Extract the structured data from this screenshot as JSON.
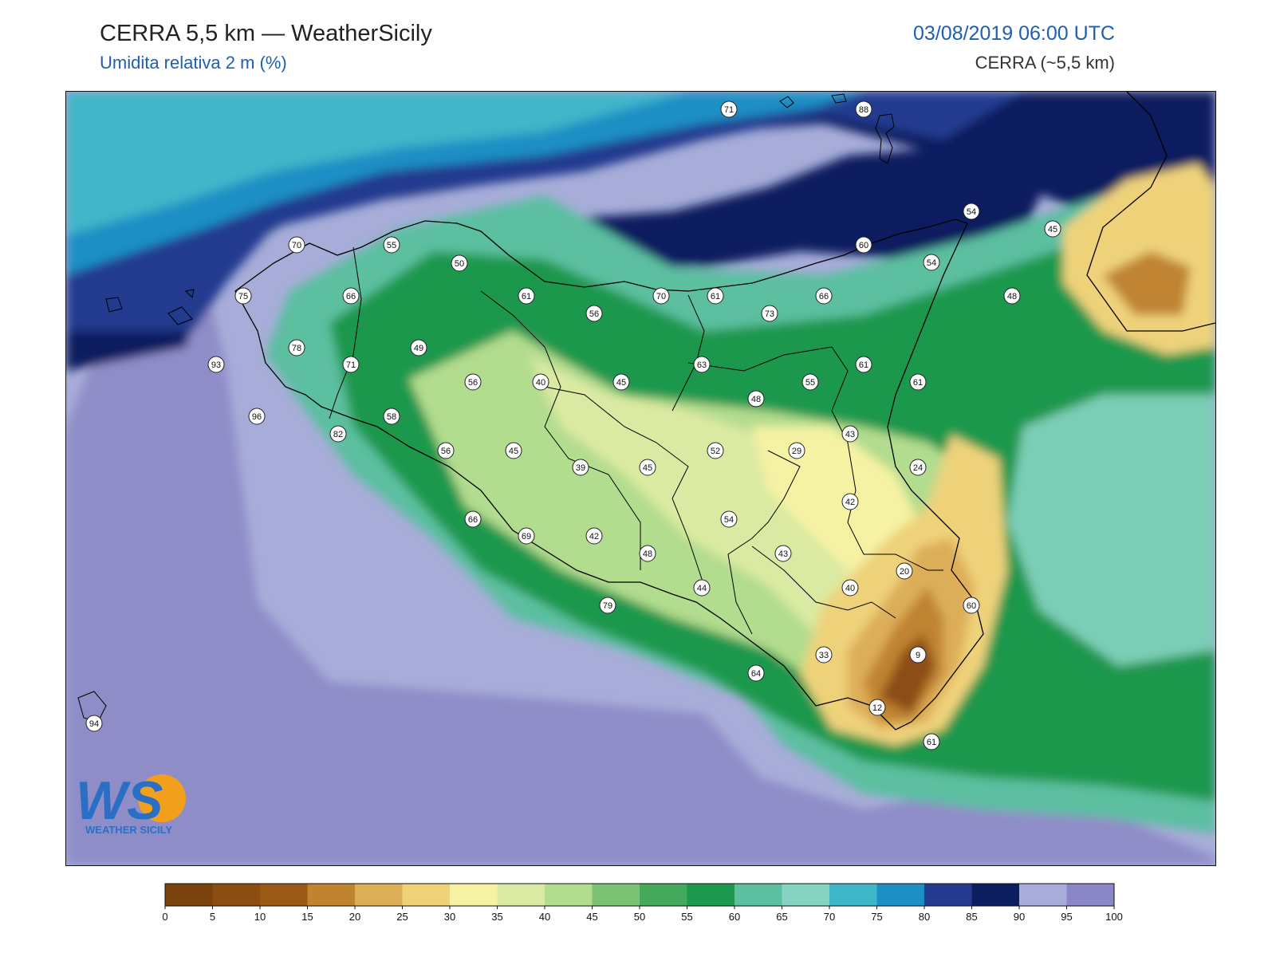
{
  "header": {
    "title": "CERRA 5,5 km — WeatherSicily",
    "subtitle": "Umidita relativa 2 m (%)",
    "datetime": "03/08/2019 06:00 UTC",
    "model": "CERRA (~5,5 km)"
  },
  "logo": {
    "letters": "WS",
    "text": "WEATHER SICILY"
  },
  "colorbar": {
    "ticks": [
      "0",
      "5",
      "10",
      "15",
      "20",
      "25",
      "30",
      "35",
      "40",
      "45",
      "50",
      "55",
      "60",
      "65",
      "70",
      "75",
      "80",
      "85",
      "90",
      "95",
      "100"
    ],
    "colors": [
      "#7a420c",
      "#8c4d12",
      "#9a5a16",
      "#c08430",
      "#ddae58",
      "#eed27a",
      "#f6f2a4",
      "#dbeaa2",
      "#b2dc8e",
      "#7cc274",
      "#44a95c",
      "#1e984e",
      "#5cbfa0",
      "#86d3c2",
      "#3fb6c8",
      "#1d8fc4",
      "#233a8f",
      "#0c1e5e",
      "#a7add8",
      "#8b87c6"
    ]
  },
  "station_values": [
    "71",
    "88",
    "70",
    "55",
    "50",
    "54",
    "45",
    "60",
    "54",
    "75",
    "66",
    "61",
    "56",
    "70",
    "61",
    "73",
    "66",
    "48",
    "78",
    "49",
    "71",
    "93",
    "56",
    "40",
    "45",
    "63",
    "55",
    "61",
    "61",
    "48",
    "96",
    "58",
    "82",
    "56",
    "45",
    "39",
    "45",
    "52",
    "29",
    "43",
    "24",
    "42",
    "66",
    "69",
    "42",
    "48",
    "54",
    "43",
    "44",
    "79",
    "40",
    "20",
    "60",
    "33",
    "9",
    "64",
    "12",
    "61",
    "94"
  ],
  "colors": {
    "sea_light": "#a7add8",
    "sea_mid": "#8b87c6",
    "accent_blue": "#1d5fb0"
  }
}
